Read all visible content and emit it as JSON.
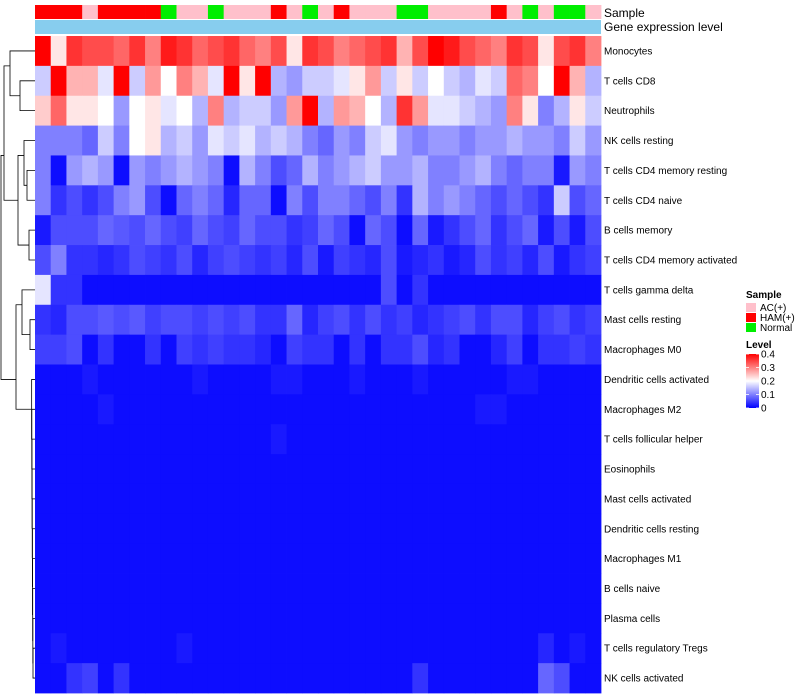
{
  "chart_data": {
    "type": "heatmap",
    "title": "",
    "annotation_tracks": [
      {
        "name": "Sample",
        "values": [
          "HAM(+)",
          "HAM(+)",
          "HAM(+)",
          "AC(+)",
          "HAM(+)",
          "HAM(+)",
          "HAM(+)",
          "HAM(+)",
          "Normal",
          "AC(+)",
          "AC(+)",
          "Normal",
          "AC(+)",
          "AC(+)",
          "AC(+)",
          "HAM(+)",
          "AC(+)",
          "Normal",
          "AC(+)",
          "HAM(+)",
          "AC(+)",
          "AC(+)",
          "AC(+)",
          "Normal",
          "Normal",
          "AC(+)",
          "AC(+)",
          "AC(+)",
          "AC(+)",
          "HAM(+)",
          "AC(+)",
          "Normal",
          "AC(+)",
          "Normal",
          "Normal",
          "AC(+)"
        ]
      },
      {
        "name": "Gene expression level",
        "color": "#87cdee"
      }
    ],
    "rows": [
      "Monocytes",
      "T cells CD8",
      "Neutrophils",
      "NK cells resting",
      "T cells CD4 memory resting",
      "T cells CD4 naive",
      "B cells memory",
      "T cells CD4 memory activated",
      "T cells gamma delta",
      "Mast cells resting",
      "Macrophages M0",
      "Dendritic cells activated",
      "Macrophages M2",
      "T cells follicular helper",
      "Eosinophils",
      "Mast cells activated",
      "Dendritic cells resting",
      "Macrophages M1",
      "B cells naive",
      "Plasma cells",
      "T cells regulatory  Tregs",
      "NK cells activated"
    ],
    "n_columns": 36,
    "matrix": [
      [
        0.42,
        0.22,
        0.36,
        0.34,
        0.34,
        0.32,
        0.36,
        0.3,
        0.38,
        0.36,
        0.32,
        0.34,
        0.36,
        0.32,
        0.3,
        0.34,
        0.22,
        0.36,
        0.34,
        0.3,
        0.32,
        0.34,
        0.36,
        0.26,
        0.34,
        0.4,
        0.38,
        0.34,
        0.32,
        0.3,
        0.36,
        0.34,
        0.22,
        0.34,
        0.36,
        0.3
      ],
      [
        0.16,
        0.4,
        0.26,
        0.26,
        0.18,
        0.4,
        0.16,
        0.28,
        0.2,
        0.3,
        0.26,
        0.18,
        0.4,
        0.22,
        0.42,
        0.14,
        0.12,
        0.16,
        0.16,
        0.18,
        0.22,
        0.28,
        0.16,
        0.22,
        0.16,
        0.2,
        0.16,
        0.14,
        0.18,
        0.16,
        0.32,
        0.3,
        0.2,
        0.4,
        0.26,
        0.14
      ],
      [
        0.24,
        0.32,
        0.22,
        0.22,
        0.2,
        0.12,
        0.2,
        0.22,
        0.18,
        0.2,
        0.14,
        0.3,
        0.14,
        0.16,
        0.16,
        0.12,
        0.28,
        0.42,
        0.14,
        0.28,
        0.26,
        0.2,
        0.14,
        0.36,
        0.28,
        0.18,
        0.18,
        0.16,
        0.14,
        0.12,
        0.3,
        0.22,
        0.1,
        0.14,
        0.22,
        0.16
      ],
      [
        0.1,
        0.1,
        0.1,
        0.08,
        0.16,
        0.1,
        0.2,
        0.22,
        0.14,
        0.16,
        0.12,
        0.18,
        0.16,
        0.18,
        0.14,
        0.16,
        0.14,
        0.1,
        0.08,
        0.12,
        0.1,
        0.16,
        0.18,
        0.12,
        0.1,
        0.12,
        0.12,
        0.1,
        0.12,
        0.12,
        0.14,
        0.12,
        0.12,
        0.1,
        0.16,
        0.12
      ],
      [
        0.1,
        0.01,
        0.12,
        0.14,
        0.12,
        0.01,
        0.12,
        0.1,
        0.12,
        0.14,
        0.12,
        0.1,
        0.01,
        0.14,
        0.1,
        0.06,
        0.08,
        0.14,
        0.1,
        0.12,
        0.14,
        0.16,
        0.12,
        0.12,
        0.14,
        0.1,
        0.1,
        0.12,
        0.14,
        0.1,
        0.08,
        0.1,
        0.1,
        0.02,
        0.12,
        0.1
      ],
      [
        0.1,
        0.04,
        0.06,
        0.04,
        0.06,
        0.1,
        0.12,
        0.06,
        0.01,
        0.08,
        0.1,
        0.08,
        0.03,
        0.08,
        0.08,
        0.01,
        0.1,
        0.06,
        0.1,
        0.1,
        0.08,
        0.06,
        0.1,
        0.04,
        0.14,
        0.1,
        0.12,
        0.1,
        0.08,
        0.06,
        0.08,
        0.06,
        0.04,
        0.16,
        0.06,
        0.08
      ],
      [
        0.02,
        0.06,
        0.06,
        0.06,
        0.08,
        0.07,
        0.06,
        0.08,
        0.06,
        0.05,
        0.08,
        0.06,
        0.05,
        0.08,
        0.06,
        0.06,
        0.04,
        0.05,
        0.08,
        0.06,
        0.01,
        0.08,
        0.06,
        0.01,
        0.08,
        0.02,
        0.04,
        0.06,
        0.08,
        0.04,
        0.06,
        0.08,
        0.02,
        0.06,
        0.02,
        0.06
      ],
      [
        0.06,
        0.1,
        0.04,
        0.04,
        0.03,
        0.04,
        0.06,
        0.05,
        0.04,
        0.06,
        0.03,
        0.05,
        0.06,
        0.05,
        0.04,
        0.05,
        0.03,
        0.06,
        0.02,
        0.05,
        0.04,
        0.03,
        0.06,
        0.02,
        0.03,
        0.04,
        0.02,
        0.03,
        0.06,
        0.04,
        0.05,
        0.03,
        0.06,
        0.02,
        0.04,
        0.05
      ],
      [
        0.18,
        0.04,
        0.04,
        0.01,
        0.01,
        0.01,
        0.01,
        0.01,
        0.01,
        0.01,
        0.01,
        0.01,
        0.01,
        0.01,
        0.01,
        0.01,
        0.01,
        0.01,
        0.01,
        0.01,
        0.01,
        0.01,
        0.06,
        0.01,
        0.04,
        0.01,
        0.01,
        0.01,
        0.01,
        0.01,
        0.01,
        0.01,
        0.01,
        0.01,
        0.01,
        0.01
      ],
      [
        0.04,
        0.03,
        0.06,
        0.06,
        0.07,
        0.06,
        0.07,
        0.05,
        0.06,
        0.06,
        0.05,
        0.06,
        0.05,
        0.06,
        0.04,
        0.04,
        0.08,
        0.03,
        0.05,
        0.06,
        0.04,
        0.06,
        0.04,
        0.05,
        0.03,
        0.04,
        0.05,
        0.06,
        0.04,
        0.06,
        0.06,
        0.03,
        0.05,
        0.06,
        0.04,
        0.05
      ],
      [
        0.05,
        0.05,
        0.06,
        0.01,
        0.04,
        0.01,
        0.01,
        0.04,
        0.01,
        0.05,
        0.04,
        0.05,
        0.04,
        0.04,
        0.03,
        0.01,
        0.05,
        0.04,
        0.04,
        0.01,
        0.04,
        0.01,
        0.04,
        0.04,
        0.06,
        0.03,
        0.04,
        0.01,
        0.01,
        0.03,
        0.05,
        0.01,
        0.04,
        0.04,
        0.05,
        0.04
      ],
      [
        0.01,
        0.01,
        0.01,
        0.02,
        0.01,
        0.01,
        0.01,
        0.01,
        0.01,
        0.01,
        0.02,
        0.01,
        0.01,
        0.01,
        0.01,
        0.02,
        0.02,
        0.01,
        0.01,
        0.01,
        0.02,
        0.01,
        0.01,
        0.01,
        0.02,
        0.01,
        0.01,
        0.01,
        0.01,
        0.01,
        0.02,
        0.02,
        0.01,
        0.01,
        0.01,
        0.01
      ],
      [
        0.01,
        0.01,
        0.01,
        0.01,
        0.02,
        0.01,
        0.01,
        0.01,
        0.01,
        0.01,
        0.01,
        0.01,
        0.01,
        0.01,
        0.01,
        0.01,
        0.01,
        0.01,
        0.01,
        0.01,
        0.01,
        0.01,
        0.01,
        0.01,
        0.01,
        0.01,
        0.01,
        0.01,
        0.02,
        0.02,
        0.01,
        0.01,
        0.01,
        0.01,
        0.01,
        0.01
      ],
      [
        0.01,
        0.01,
        0.01,
        0.01,
        0.01,
        0.01,
        0.01,
        0.01,
        0.01,
        0.01,
        0.01,
        0.01,
        0.01,
        0.01,
        0.01,
        0.02,
        0.01,
        0.01,
        0.01,
        0.01,
        0.01,
        0.01,
        0.01,
        0.01,
        0.01,
        0.01,
        0.01,
        0.01,
        0.01,
        0.01,
        0.01,
        0.01,
        0.01,
        0.01,
        0.01,
        0.01
      ],
      [
        0.01,
        0.01,
        0.01,
        0.01,
        0.01,
        0.01,
        0.01,
        0.01,
        0.01,
        0.01,
        0.01,
        0.01,
        0.01,
        0.01,
        0.01,
        0.01,
        0.01,
        0.01,
        0.01,
        0.01,
        0.01,
        0.01,
        0.01,
        0.01,
        0.01,
        0.01,
        0.01,
        0.01,
        0.01,
        0.01,
        0.01,
        0.01,
        0.01,
        0.01,
        0.01,
        0.01
      ],
      [
        0.01,
        0.01,
        0.01,
        0.01,
        0.01,
        0.01,
        0.01,
        0.01,
        0.01,
        0.01,
        0.01,
        0.01,
        0.01,
        0.01,
        0.01,
        0.01,
        0.01,
        0.01,
        0.01,
        0.01,
        0.01,
        0.01,
        0.01,
        0.01,
        0.01,
        0.01,
        0.01,
        0.01,
        0.01,
        0.01,
        0.01,
        0.01,
        0.01,
        0.01,
        0.01,
        0.01
      ],
      [
        0.01,
        0.01,
        0.01,
        0.01,
        0.01,
        0.01,
        0.01,
        0.01,
        0.01,
        0.01,
        0.01,
        0.01,
        0.01,
        0.01,
        0.01,
        0.01,
        0.01,
        0.01,
        0.01,
        0.01,
        0.01,
        0.01,
        0.01,
        0.01,
        0.01,
        0.01,
        0.01,
        0.01,
        0.01,
        0.01,
        0.01,
        0.01,
        0.01,
        0.01,
        0.01,
        0.01
      ],
      [
        0.01,
        0.01,
        0.01,
        0.01,
        0.01,
        0.01,
        0.01,
        0.01,
        0.01,
        0.01,
        0.01,
        0.01,
        0.01,
        0.01,
        0.01,
        0.01,
        0.01,
        0.01,
        0.01,
        0.01,
        0.01,
        0.01,
        0.01,
        0.01,
        0.01,
        0.01,
        0.01,
        0.01,
        0.01,
        0.01,
        0.01,
        0.01,
        0.01,
        0.01,
        0.01,
        0.01
      ],
      [
        0.01,
        0.01,
        0.01,
        0.01,
        0.01,
        0.01,
        0.01,
        0.01,
        0.01,
        0.01,
        0.01,
        0.01,
        0.01,
        0.01,
        0.01,
        0.01,
        0.01,
        0.01,
        0.01,
        0.01,
        0.01,
        0.01,
        0.01,
        0.01,
        0.01,
        0.01,
        0.01,
        0.01,
        0.01,
        0.01,
        0.01,
        0.01,
        0.01,
        0.01,
        0.01,
        0.01
      ],
      [
        0.01,
        0.01,
        0.01,
        0.01,
        0.01,
        0.01,
        0.01,
        0.01,
        0.01,
        0.01,
        0.01,
        0.01,
        0.01,
        0.01,
        0.01,
        0.01,
        0.01,
        0.01,
        0.01,
        0.01,
        0.01,
        0.01,
        0.01,
        0.01,
        0.01,
        0.01,
        0.01,
        0.01,
        0.01,
        0.01,
        0.01,
        0.01,
        0.01,
        0.01,
        0.01,
        0.01
      ],
      [
        0.01,
        0.02,
        0.01,
        0.01,
        0.01,
        0.01,
        0.01,
        0.01,
        0.01,
        0.02,
        0.01,
        0.01,
        0.01,
        0.01,
        0.01,
        0.01,
        0.01,
        0.01,
        0.01,
        0.01,
        0.01,
        0.01,
        0.01,
        0.01,
        0.01,
        0.01,
        0.01,
        0.01,
        0.01,
        0.01,
        0.01,
        0.01,
        0.03,
        0.01,
        0.02,
        0.01
      ],
      [
        0.01,
        0.01,
        0.04,
        0.05,
        0.01,
        0.04,
        0.01,
        0.01,
        0.01,
        0.01,
        0.01,
        0.01,
        0.01,
        0.01,
        0.01,
        0.01,
        0.01,
        0.01,
        0.01,
        0.01,
        0.01,
        0.01,
        0.01,
        0.01,
        0.04,
        0.01,
        0.01,
        0.01,
        0.01,
        0.01,
        0.01,
        0.01,
        0.08,
        0.06,
        0.01,
        0.01
      ]
    ],
    "legend": {
      "sample_title": "Sample",
      "sample_items": [
        {
          "label": "AC(+)",
          "color": "#ffc0cb"
        },
        {
          "label": "HAM(+)",
          "color": "#ff0000"
        },
        {
          "label": "Normal",
          "color": "#00ee00"
        }
      ],
      "level_title": "Level",
      "level_ticks": [
        "0.4",
        "0.3",
        "0.2",
        "0.1",
        "0"
      ],
      "range": [
        0,
        0.4
      ]
    },
    "colors": {
      "low": "#0000ff",
      "mid": "#ffffff",
      "high": "#ff0000"
    }
  }
}
